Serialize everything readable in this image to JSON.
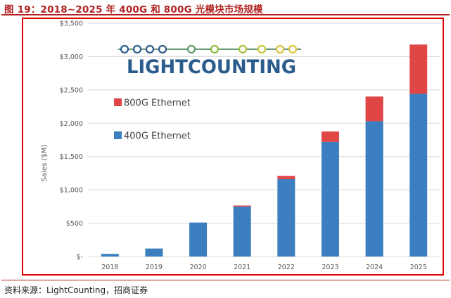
{
  "header": {
    "title": "图 19：2018~2025 年 400G 和 800G 光模块市场规模"
  },
  "footer": {
    "source": "资料来源：LightCounting，招商证券"
  },
  "logo": {
    "text_light": "LIGHT",
    "text_counting": "COUNTING",
    "color_dark": "#2b5d8c",
    "color_accent": "#8dbb3c"
  },
  "colors": {
    "s400": "#3b7fc1",
    "s800": "#e04646",
    "grid": "#d9d9d9"
  },
  "chart_data": {
    "type": "bar",
    "stacked": true,
    "title": "",
    "xlabel": "",
    "ylabel": "Sales ($M)",
    "ylim": [
      0,
      3500
    ],
    "grid": true,
    "legend_position": "upper-left",
    "categories": [
      "2018",
      "2019",
      "2020",
      "2021",
      "2022",
      "2023",
      "2024",
      "2025"
    ],
    "ytick_values": [
      0,
      500,
      1000,
      1500,
      2000,
      2500,
      3000,
      3500
    ],
    "ytick_labels": [
      "$-",
      "$500",
      "$1,000",
      "$1,500",
      "$2,000",
      "$2,500",
      "$3,000",
      "$3,500"
    ],
    "series": [
      {
        "name": "400G Ethernet",
        "color": "#3b7fc1",
        "values": [
          40,
          120,
          510,
          750,
          1160,
          1720,
          2030,
          2440
        ]
      },
      {
        "name": "800G Ethernet",
        "color": "#e04646",
        "values": [
          0,
          0,
          0,
          15,
          50,
          155,
          370,
          740
        ]
      }
    ],
    "legend": [
      {
        "label": "800G Ethernet",
        "color": "#e04646"
      },
      {
        "label": "400G Ethernet",
        "color": "#3b7fc1"
      }
    ]
  }
}
